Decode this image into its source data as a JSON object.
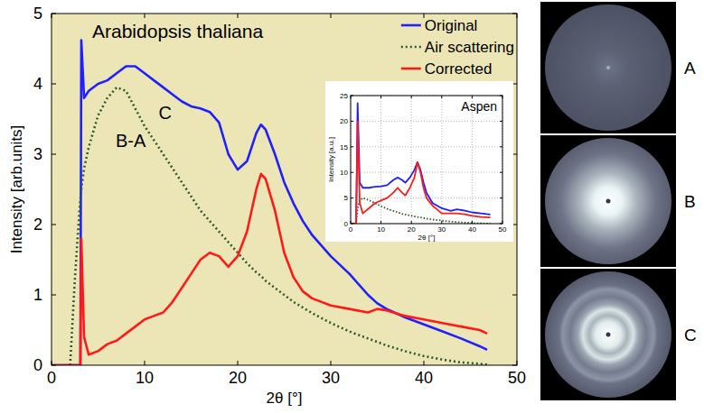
{
  "chart_data": [
    {
      "type": "line",
      "title": "Arabidopsis thaliana",
      "x_label": "2θ [°]",
      "y_label": "Intensity [arb.units]",
      "xlim": [
        0,
        50
      ],
      "ylim": [
        0,
        5
      ],
      "xticks": [
        0,
        10,
        20,
        30,
        40,
        50
      ],
      "yticks": [
        0,
        1,
        2,
        3,
        4,
        5
      ],
      "legend": "upper right",
      "annotations": [
        {
          "text": "B-A",
          "x": 8.5,
          "y": 3.1
        },
        {
          "text": "C",
          "x": 12.2,
          "y": 3.5
        }
      ],
      "x": [
        0,
        2,
        2.5,
        3,
        3.1,
        3.2,
        3.5,
        4,
        5,
        6,
        7,
        8,
        9,
        10,
        11,
        12,
        13,
        14,
        15,
        16,
        17,
        18,
        19,
        20,
        21,
        22,
        22.5,
        23,
        24,
        25,
        26,
        27,
        28,
        30,
        32,
        34,
        35,
        36,
        38,
        40,
        42,
        44,
        46,
        46.8
      ],
      "series": [
        {
          "name": "Original",
          "color": "#1f1fff",
          "line_style": "solid",
          "values": [
            0,
            0,
            0,
            0,
            0,
            4.62,
            3.8,
            3.9,
            4.0,
            4.05,
            4.15,
            4.25,
            4.25,
            4.15,
            4.05,
            3.95,
            3.85,
            3.75,
            3.68,
            3.65,
            3.6,
            3.45,
            3.0,
            2.78,
            2.9,
            3.3,
            3.42,
            3.35,
            3.0,
            2.6,
            2.3,
            2.05,
            1.85,
            1.55,
            1.3,
            1.0,
            0.88,
            0.8,
            0.68,
            0.58,
            0.48,
            0.38,
            0.27,
            0.22
          ]
        },
        {
          "name": "Air scattering",
          "color": "#2e5a2e",
          "line_style": "dotted",
          "values": [
            null,
            0,
            1.2,
            2.2,
            2.35,
            2.5,
            2.8,
            3.1,
            3.55,
            3.8,
            3.95,
            3.9,
            3.65,
            3.4,
            3.2,
            3.0,
            2.8,
            2.6,
            2.4,
            2.2,
            2.05,
            1.9,
            1.75,
            1.6,
            1.45,
            1.32,
            1.27,
            1.2,
            1.1,
            1.0,
            0.9,
            0.82,
            0.74,
            0.6,
            0.48,
            0.38,
            0.33,
            0.28,
            0.2,
            0.13,
            0.08,
            0.04,
            0.02,
            0.01
          ]
        },
        {
          "name": "Corrected",
          "color": "#ff1a1a",
          "line_style": "solid",
          "values": [
            0,
            0,
            0,
            0,
            0,
            1.8,
            0.4,
            0.15,
            0.2,
            0.3,
            0.35,
            0.45,
            0.55,
            0.65,
            0.7,
            0.75,
            0.9,
            1.1,
            1.3,
            1.5,
            1.6,
            1.55,
            1.4,
            1.55,
            1.9,
            2.5,
            2.72,
            2.65,
            2.2,
            1.6,
            1.25,
            1.05,
            0.95,
            0.85,
            0.8,
            0.75,
            0.8,
            0.78,
            0.7,
            0.65,
            0.6,
            0.55,
            0.5,
            0.45
          ]
        }
      ]
    },
    {
      "type": "line",
      "title": "Aspen",
      "x_label": "2θ [°]",
      "y_label": "Intensity [a.u.]",
      "xlim": [
        0,
        50
      ],
      "ylim": [
        0,
        25
      ],
      "xticks": [
        0,
        10,
        20,
        30,
        40,
        50
      ],
      "yticks": [
        0,
        5,
        10,
        15,
        20,
        25
      ],
      "grid": true,
      "x": [
        0,
        1.8,
        2.3,
        3,
        4,
        6,
        8,
        10,
        12,
        14,
        15.5,
        17,
        18,
        19.5,
        21,
        22,
        23,
        24,
        25,
        27,
        30,
        33,
        35,
        38,
        40,
        43,
        46
      ],
      "series": [
        {
          "name": "Original",
          "color": "#1f1fff",
          "line_style": "solid",
          "values": [
            0,
            0,
            23.5,
            8,
            7,
            7,
            7.2,
            7.3,
            7.5,
            8.5,
            9,
            8.5,
            8,
            9,
            10.5,
            12,
            10.5,
            8,
            6,
            4,
            3,
            2.5,
            2.8,
            2.5,
            2.2,
            2,
            1.8
          ]
        },
        {
          "name": "Air scattering",
          "color": "#2e5a2e",
          "line_style": "dotted",
          "values": [
            null,
            0,
            3,
            4.5,
            5,
            4.6,
            4,
            3.4,
            2.9,
            2.5,
            2.2,
            1.9,
            1.8,
            1.6,
            1.4,
            1.3,
            1.2,
            1.1,
            1,
            0.8,
            0.6,
            0.4,
            0.3,
            0.2,
            0.1,
            0.05,
            0
          ]
        },
        {
          "name": "Corrected",
          "color": "#ff1a1a",
          "line_style": "solid",
          "values": [
            0,
            0,
            20,
            4,
            2,
            3,
            4,
            4.5,
            5,
            6,
            7,
            6,
            5.5,
            7,
            9,
            12,
            10,
            7,
            5,
            3.5,
            2,
            2,
            2,
            1.8,
            1.5,
            1.3,
            1.2
          ]
        }
      ]
    }
  ],
  "image_panels": {
    "labels": [
      "A",
      "B",
      "C"
    ]
  }
}
